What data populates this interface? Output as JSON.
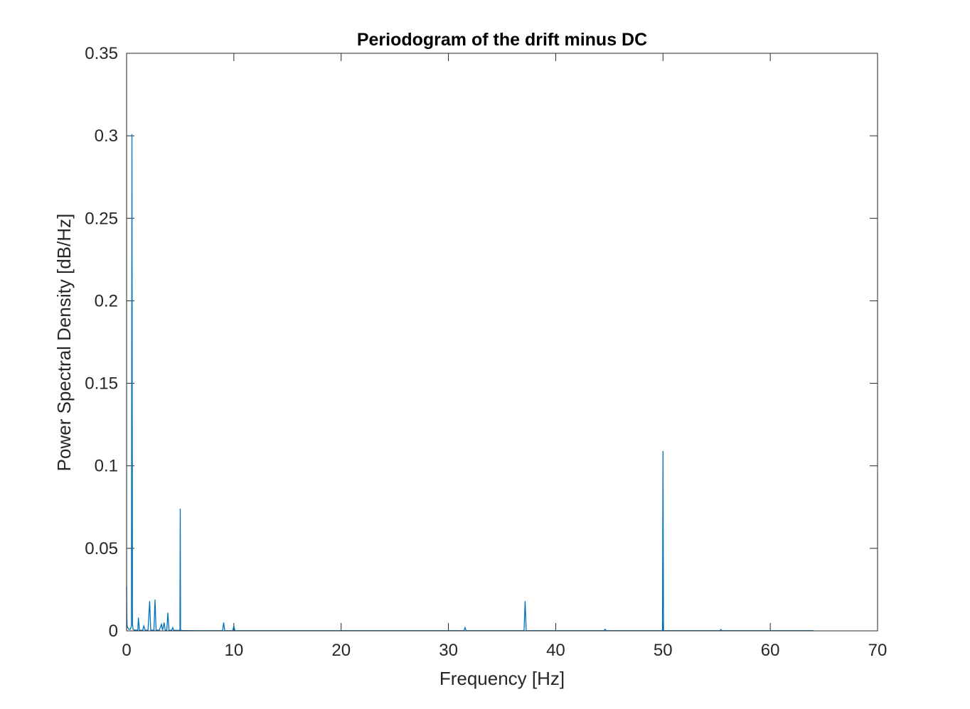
{
  "chart_data": {
    "type": "line",
    "title": "Periodogram of the drift minus DC",
    "xlabel": "Frequency [Hz]",
    "ylabel": "Power Spectral Density [dB/Hz]",
    "xlim": [
      0,
      70
    ],
    "ylim": [
      0,
      0.35
    ],
    "xticks": [
      0,
      10,
      20,
      30,
      40,
      50,
      60,
      70
    ],
    "xtick_labels": [
      "0",
      "10",
      "20",
      "30",
      "40",
      "50",
      "60",
      "70"
    ],
    "yticks": [
      0,
      0.05,
      0.1,
      0.15,
      0.2,
      0.25,
      0.3,
      0.35
    ],
    "ytick_labels": [
      "0",
      "0.05",
      "0.1",
      "0.15",
      "0.2",
      "0.25",
      "0.3",
      "0.35"
    ],
    "grid": false,
    "line_color": "#0072BD",
    "series": [
      {
        "x": [
          0,
          0.02,
          0.05,
          0.1,
          0.2,
          0.35,
          0.45,
          0.5,
          0.55,
          0.6,
          0.7,
          0.9,
          1.05,
          1.1,
          1.2,
          1.5,
          1.6,
          1.75,
          2.0,
          2.15,
          2.25,
          2.35,
          2.55,
          2.65,
          2.75,
          3.05,
          3.25,
          3.35,
          3.5,
          3.6,
          3.75,
          3.85,
          3.95,
          4.2,
          4.3,
          4.4,
          4.8,
          4.97,
          5.0,
          5.03,
          5.2,
          6.5,
          8.0,
          8.95,
          9.05,
          9.15,
          9.9,
          10.0,
          10.1,
          15,
          20,
          25,
          31.45,
          31.55,
          31.65,
          35,
          37.05,
          37.15,
          37.25,
          40,
          44.5,
          44.6,
          44.7,
          48,
          49.95,
          50.0,
          50.05,
          52,
          55.3,
          55.4,
          55.5,
          60,
          64.0
        ],
        "y": [
          0.027,
          0.008,
          0.003,
          0.002,
          0.001,
          0.001,
          0.003,
          0.301,
          0.004,
          0.001,
          0.0005,
          0.0005,
          0.0003,
          0.008,
          0.0004,
          0.0003,
          0.003,
          0.0003,
          0.0005,
          0.018,
          0.0005,
          0.0004,
          0.0005,
          0.019,
          0.0005,
          0.0004,
          0.004,
          0.0004,
          0.005,
          0.0004,
          0.0004,
          0.011,
          0.0004,
          0.0003,
          0.002,
          0.0003,
          0.0003,
          0.0003,
          0.074,
          0.0003,
          0.0002,
          0.0001,
          0.0001,
          0.0001,
          0.005,
          0.0001,
          0.0001,
          0.003,
          0.0001,
          0.0001,
          0.0001,
          0.0001,
          0.0001,
          0.002,
          0.0001,
          0.0001,
          0.0001,
          0.018,
          0.0001,
          0.0001,
          0.0001,
          0.001,
          0.0001,
          0.0001,
          0.0001,
          0.109,
          0.0001,
          0.0001,
          0.0001,
          0.0008,
          0.0001,
          0.0001,
          0.0001
        ]
      }
    ]
  }
}
